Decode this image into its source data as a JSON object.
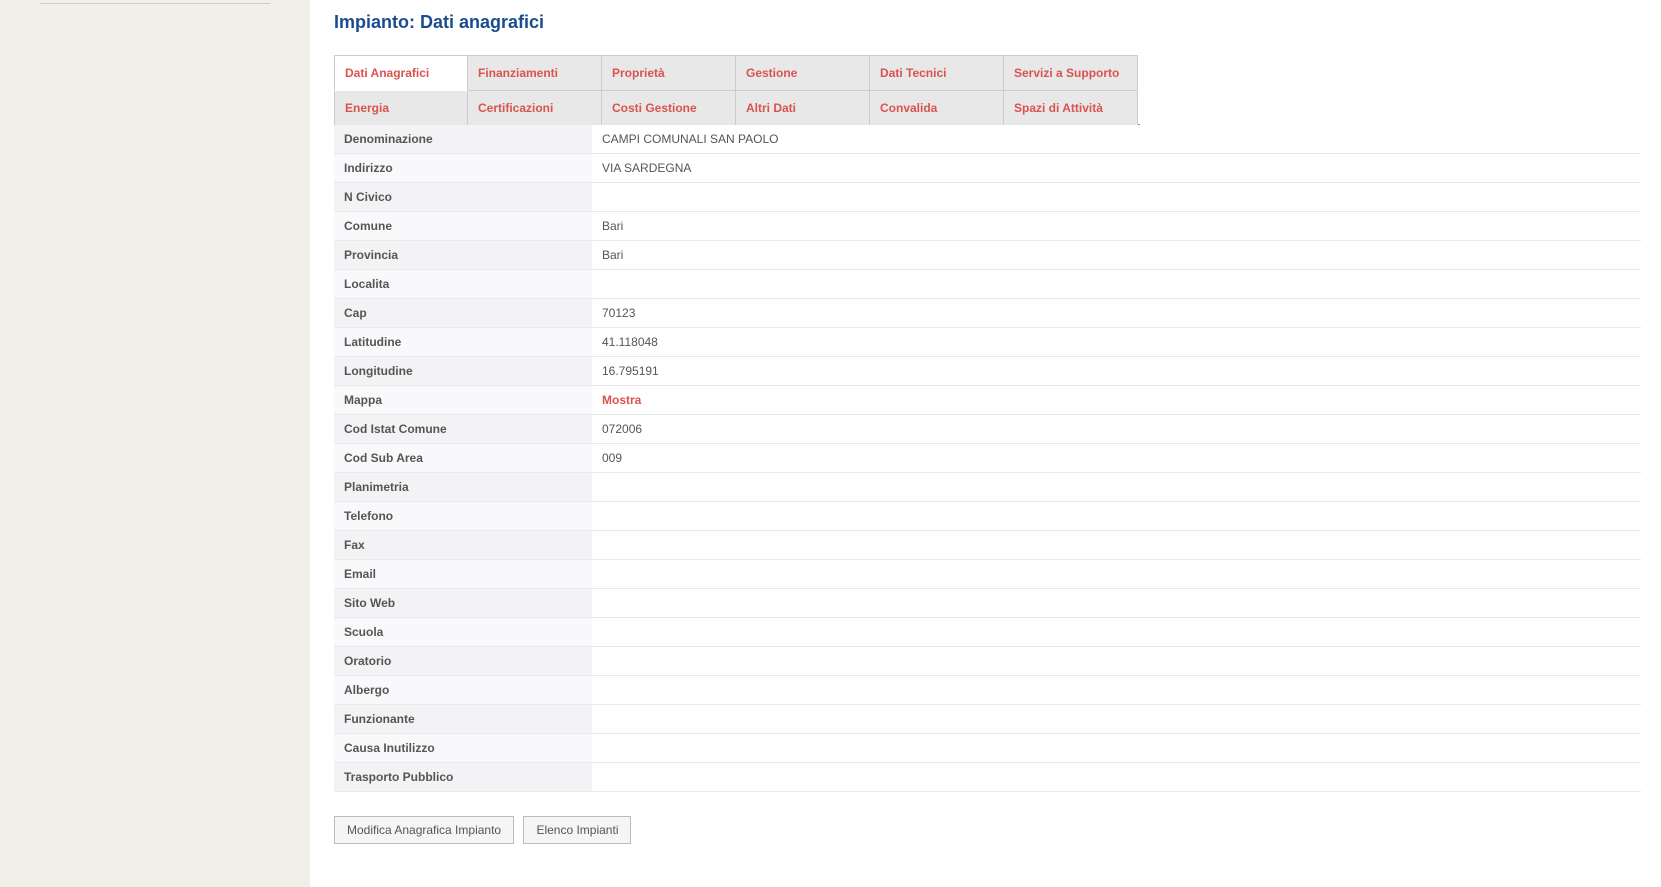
{
  "page_title": "Impianto: Dati anagrafici",
  "tabs": {
    "row1": [
      {
        "label": "Dati Anagrafici",
        "active": true
      },
      {
        "label": "Finanziamenti",
        "active": false
      },
      {
        "label": "Proprietà",
        "active": false
      },
      {
        "label": "Gestione",
        "active": false
      },
      {
        "label": "Dati Tecnici",
        "active": false
      },
      {
        "label": "Servizi a Supporto",
        "active": false
      }
    ],
    "row2": [
      {
        "label": "Energia",
        "active": false
      },
      {
        "label": "Certificazioni",
        "active": false
      },
      {
        "label": "Costi Gestione",
        "active": false
      },
      {
        "label": "Altri Dati",
        "active": false
      },
      {
        "label": "Convalida",
        "active": false
      },
      {
        "label": "Spazi di Attività",
        "active": false
      }
    ]
  },
  "fields": [
    {
      "label": "Denominazione",
      "value": "CAMPI COMUNALI SAN PAOLO"
    },
    {
      "label": "Indirizzo",
      "value": "VIA SARDEGNA"
    },
    {
      "label": "N Civico",
      "value": ""
    },
    {
      "label": "Comune",
      "value": "Bari"
    },
    {
      "label": "Provincia",
      "value": "Bari"
    },
    {
      "label": "Localita",
      "value": ""
    },
    {
      "label": "Cap",
      "value": "70123"
    },
    {
      "label": "Latitudine",
      "value": "41.118048"
    },
    {
      "label": "Longitudine",
      "value": "16.795191"
    },
    {
      "label": "Mappa",
      "value": "Mostra",
      "link": true
    },
    {
      "label": "Cod Istat Comune",
      "value": "072006"
    },
    {
      "label": "Cod Sub Area",
      "value": "009"
    },
    {
      "label": "Planimetria",
      "value": ""
    },
    {
      "label": "Telefono",
      "value": ""
    },
    {
      "label": "Fax",
      "value": ""
    },
    {
      "label": "Email",
      "value": ""
    },
    {
      "label": "Sito Web",
      "value": ""
    },
    {
      "label": "Scuola",
      "value": ""
    },
    {
      "label": "Oratorio",
      "value": ""
    },
    {
      "label": "Albergo",
      "value": ""
    },
    {
      "label": "Funzionante",
      "value": ""
    },
    {
      "label": "Causa Inutilizzo",
      "value": ""
    },
    {
      "label": "Trasporto Pubblico",
      "value": ""
    }
  ],
  "buttons": {
    "edit": "Modifica Anagrafica Impianto",
    "list": "Elenco Impianti"
  },
  "colors": {
    "page_bg": "#f2efe9",
    "panel_bg": "#ffffff",
    "title": "#1a4d8f",
    "tab_text": "#d9534f",
    "tab_bg": "#e8e8e8",
    "border": "#cccccc",
    "row_alt_a": "#f3f3f5",
    "row_alt_b": "#f9f9fb"
  }
}
